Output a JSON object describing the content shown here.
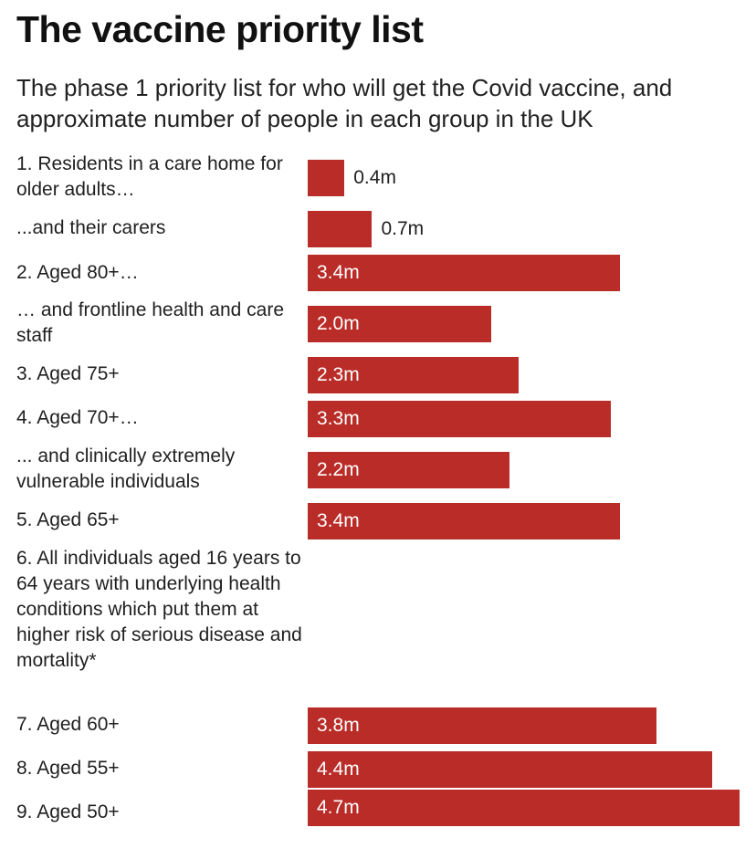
{
  "title": "The vaccine priority list",
  "subtitle": "The phase 1 priority list for who will get the Covid vaccine, and approximate number of people in each group in the UK",
  "colors": {
    "bar": "#b92c28"
  },
  "chart_data": {
    "type": "bar",
    "orientation": "horizontal",
    "unit": "m",
    "xlim": [
      0,
      4.7
    ],
    "grid": false,
    "legend": "none",
    "categories": [
      "1. Residents in a care home for older adults…",
      "...and their carers",
      "2. Aged 80+…",
      "… and frontline health and care staff",
      "3. Aged 75+",
      "4. Aged 70+…",
      "... and clinically extremely vulnerable individuals",
      "5. Aged 65+",
      "6. All individuals aged 16 years to 64 years with underlying health conditions which put them at higher risk of serious disease and mortality*",
      "7. Aged 60+",
      "8. Aged 55+",
      "9. Aged 50+"
    ],
    "values": [
      0.4,
      0.7,
      3.4,
      2.0,
      2.3,
      3.3,
      2.2,
      3.4,
      null,
      3.8,
      4.4,
      4.7
    ],
    "value_labels": [
      "0.4m",
      "0.7m",
      "3.4m",
      "2.0m",
      "2.3m",
      "3.3m",
      "2.2m",
      "3.4m",
      "",
      "3.8m",
      "4.4m",
      "4.7m"
    ]
  }
}
